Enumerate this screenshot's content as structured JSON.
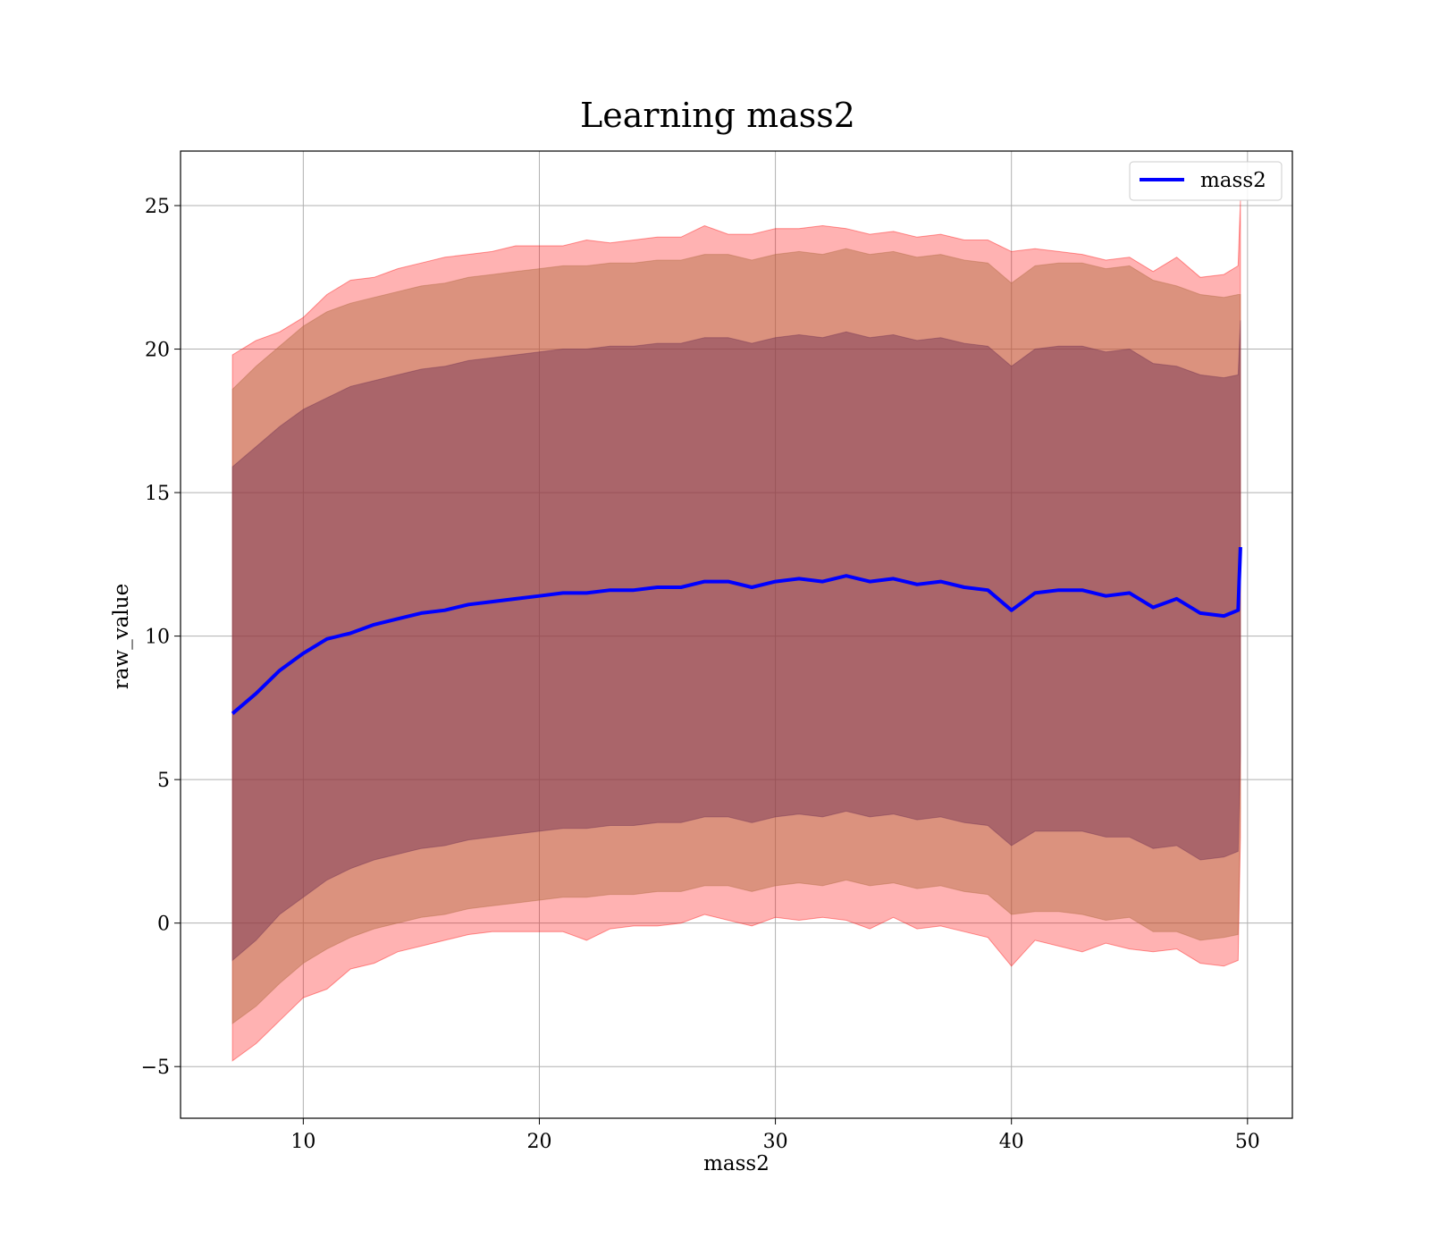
{
  "chart_data": {
    "type": "line",
    "title": "Learning mass2",
    "xlabel": "mass2",
    "ylabel": "raw_value",
    "xlim": [
      4.8,
      51.9
    ],
    "ylim": [
      -6.8,
      26.9
    ],
    "xticks": [
      10,
      20,
      30,
      40,
      50
    ],
    "yticks": [
      -5,
      0,
      5,
      10,
      15,
      20,
      25
    ],
    "xtick_labels": [
      "10",
      "20",
      "30",
      "40",
      "50"
    ],
    "ytick_labels": [
      "−5",
      "0",
      "5",
      "10",
      "15",
      "20",
      "25"
    ],
    "grid": true,
    "legend": {
      "position": "top-right",
      "entries": [
        "mass2"
      ]
    },
    "colors": {
      "line": "#0000ff",
      "band": "#ff0000",
      "inner_band": "#7a3a4f",
      "mid_band": "#d9904f"
    },
    "series": [
      {
        "name": "mass2",
        "x": [
          7.0,
          8.0,
          9.0,
          10.0,
          11.0,
          12.0,
          13.0,
          14.0,
          15.0,
          16.0,
          17.0,
          18.0,
          19.0,
          20.0,
          21.0,
          22.0,
          23.0,
          24.0,
          25.0,
          26.0,
          27.0,
          28.0,
          29.0,
          30.0,
          31.0,
          32.0,
          33.0,
          34.0,
          35.0,
          36.0,
          37.0,
          38.0,
          39.0,
          40.0,
          41.0,
          42.0,
          43.0,
          44.0,
          45.0,
          46.0,
          47.0,
          48.0,
          49.0,
          49.6,
          49.7
        ],
        "y": [
          7.3,
          8.0,
          8.8,
          9.4,
          9.9,
          10.1,
          10.4,
          10.6,
          10.8,
          10.9,
          11.1,
          11.2,
          11.3,
          11.4,
          11.5,
          11.5,
          11.6,
          11.6,
          11.7,
          11.7,
          11.9,
          11.9,
          11.7,
          11.9,
          12.0,
          11.9,
          12.1,
          11.9,
          12.0,
          11.8,
          11.9,
          11.7,
          11.6,
          10.9,
          11.5,
          11.6,
          11.6,
          11.4,
          11.5,
          11.0,
          11.3,
          10.8,
          10.7,
          10.9,
          13.1
        ]
      }
    ],
    "bands": [
      {
        "name": "outer",
        "upper": [
          19.8,
          20.3,
          20.6,
          21.1,
          21.9,
          22.4,
          22.5,
          22.8,
          23.0,
          23.2,
          23.3,
          23.4,
          23.6,
          23.6,
          23.6,
          23.8,
          23.7,
          23.8,
          23.9,
          23.9,
          24.3,
          24.0,
          24.0,
          24.2,
          24.2,
          24.3,
          24.2,
          24.0,
          24.1,
          23.9,
          24.0,
          23.8,
          23.8,
          23.4,
          23.5,
          23.4,
          23.3,
          23.1,
          23.2,
          22.7,
          23.2,
          22.5,
          22.6,
          22.9,
          25.2
        ],
        "lower": [
          -4.8,
          -4.2,
          -3.4,
          -2.6,
          -2.3,
          -1.6,
          -1.4,
          -1.0,
          -0.8,
          -0.6,
          -0.4,
          -0.3,
          -0.3,
          -0.3,
          -0.3,
          -0.6,
          -0.2,
          -0.1,
          -0.1,
          0.0,
          0.3,
          0.1,
          -0.1,
          0.2,
          0.1,
          0.2,
          0.1,
          -0.2,
          0.2,
          -0.2,
          -0.1,
          -0.3,
          -0.5,
          -1.5,
          -0.6,
          -0.8,
          -1.0,
          -0.7,
          -0.9,
          -1.0,
          -0.9,
          -1.4,
          -1.5,
          -1.3,
          3.0
        ]
      },
      {
        "name": "middle",
        "upper": [
          18.6,
          19.4,
          20.1,
          20.8,
          21.3,
          21.6,
          21.8,
          22.0,
          22.2,
          22.3,
          22.5,
          22.6,
          22.7,
          22.8,
          22.9,
          22.9,
          23.0,
          23.0,
          23.1,
          23.1,
          23.3,
          23.3,
          23.1,
          23.3,
          23.4,
          23.3,
          23.5,
          23.3,
          23.4,
          23.2,
          23.3,
          23.1,
          23.0,
          22.3,
          22.9,
          23.0,
          23.0,
          22.8,
          22.9,
          22.4,
          22.2,
          21.9,
          21.8,
          21.9,
          21.9
        ],
        "lower": [
          -3.5,
          -2.9,
          -2.1,
          -1.4,
          -0.9,
          -0.5,
          -0.2,
          0.0,
          0.2,
          0.3,
          0.5,
          0.6,
          0.7,
          0.8,
          0.9,
          0.9,
          1.0,
          1.0,
          1.1,
          1.1,
          1.3,
          1.3,
          1.1,
          1.3,
          1.4,
          1.3,
          1.5,
          1.3,
          1.4,
          1.2,
          1.3,
          1.1,
          1.0,
          0.3,
          0.4,
          0.4,
          0.3,
          0.1,
          0.2,
          -0.3,
          -0.3,
          -0.6,
          -0.5,
          -0.4,
          4.0
        ]
      },
      {
        "name": "inner",
        "upper": [
          15.9,
          16.6,
          17.3,
          17.9,
          18.3,
          18.7,
          18.9,
          19.1,
          19.3,
          19.4,
          19.6,
          19.7,
          19.8,
          19.9,
          20.0,
          20.0,
          20.1,
          20.1,
          20.2,
          20.2,
          20.4,
          20.4,
          20.2,
          20.4,
          20.5,
          20.4,
          20.6,
          20.4,
          20.5,
          20.3,
          20.4,
          20.2,
          20.1,
          19.4,
          20.0,
          20.1,
          20.1,
          19.9,
          20.0,
          19.5,
          19.4,
          19.1,
          19.0,
          19.1,
          21.0
        ],
        "lower": [
          -1.3,
          -0.6,
          0.3,
          0.9,
          1.5,
          1.9,
          2.2,
          2.4,
          2.6,
          2.7,
          2.9,
          3.0,
          3.1,
          3.2,
          3.3,
          3.3,
          3.4,
          3.4,
          3.5,
          3.5,
          3.7,
          3.7,
          3.5,
          3.7,
          3.8,
          3.7,
          3.9,
          3.7,
          3.8,
          3.6,
          3.7,
          3.5,
          3.4,
          2.7,
          3.2,
          3.2,
          3.2,
          3.0,
          3.0,
          2.6,
          2.7,
          2.2,
          2.3,
          2.5,
          6.0
        ]
      }
    ]
  }
}
